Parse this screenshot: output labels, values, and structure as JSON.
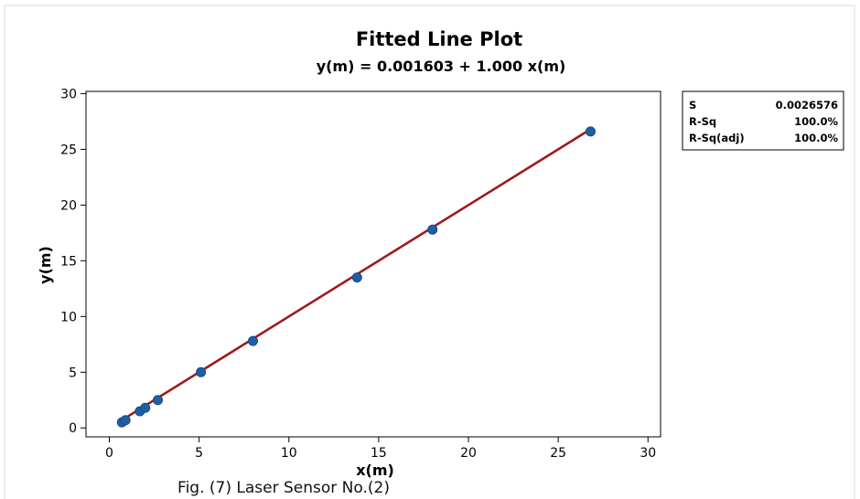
{
  "chart_data": {
    "type": "scatter",
    "title": "Fitted Line Plot",
    "subtitle": "y(m) = 0.001603 + 1.000  x(m)",
    "xlabel": "x(m)",
    "ylabel": "y(m)",
    "xlim": [
      -1.3,
      30.7
    ],
    "ylim": [
      -0.8,
      30.2
    ],
    "xticks": [
      0,
      5,
      10,
      15,
      20,
      25,
      30
    ],
    "yticks": [
      0,
      5,
      10,
      15,
      20,
      25,
      30
    ],
    "x": [
      0.7,
      0.9,
      1.7,
      2.0,
      2.7,
      5.1,
      8.0,
      13.8,
      18.0,
      26.8
    ],
    "y": [
      0.5,
      0.7,
      1.5,
      1.8,
      2.5,
      5.0,
      7.8,
      13.5,
      17.8,
      26.6
    ],
    "fit": {
      "intercept": 0.001603,
      "slope": 1.0
    },
    "colors": {
      "points": "#1f5fa6",
      "fit_line": "#9e1a1a",
      "axes": "#000000"
    },
    "grid": false,
    "stats": [
      {
        "label": "S",
        "value": "0.0026576"
      },
      {
        "label": "R-Sq",
        "value": "100.0%"
      },
      {
        "label": "R-Sq(adj)",
        "value": "100.0%"
      }
    ]
  },
  "caption": "Fig. (7) Laser Sensor No.(2)"
}
